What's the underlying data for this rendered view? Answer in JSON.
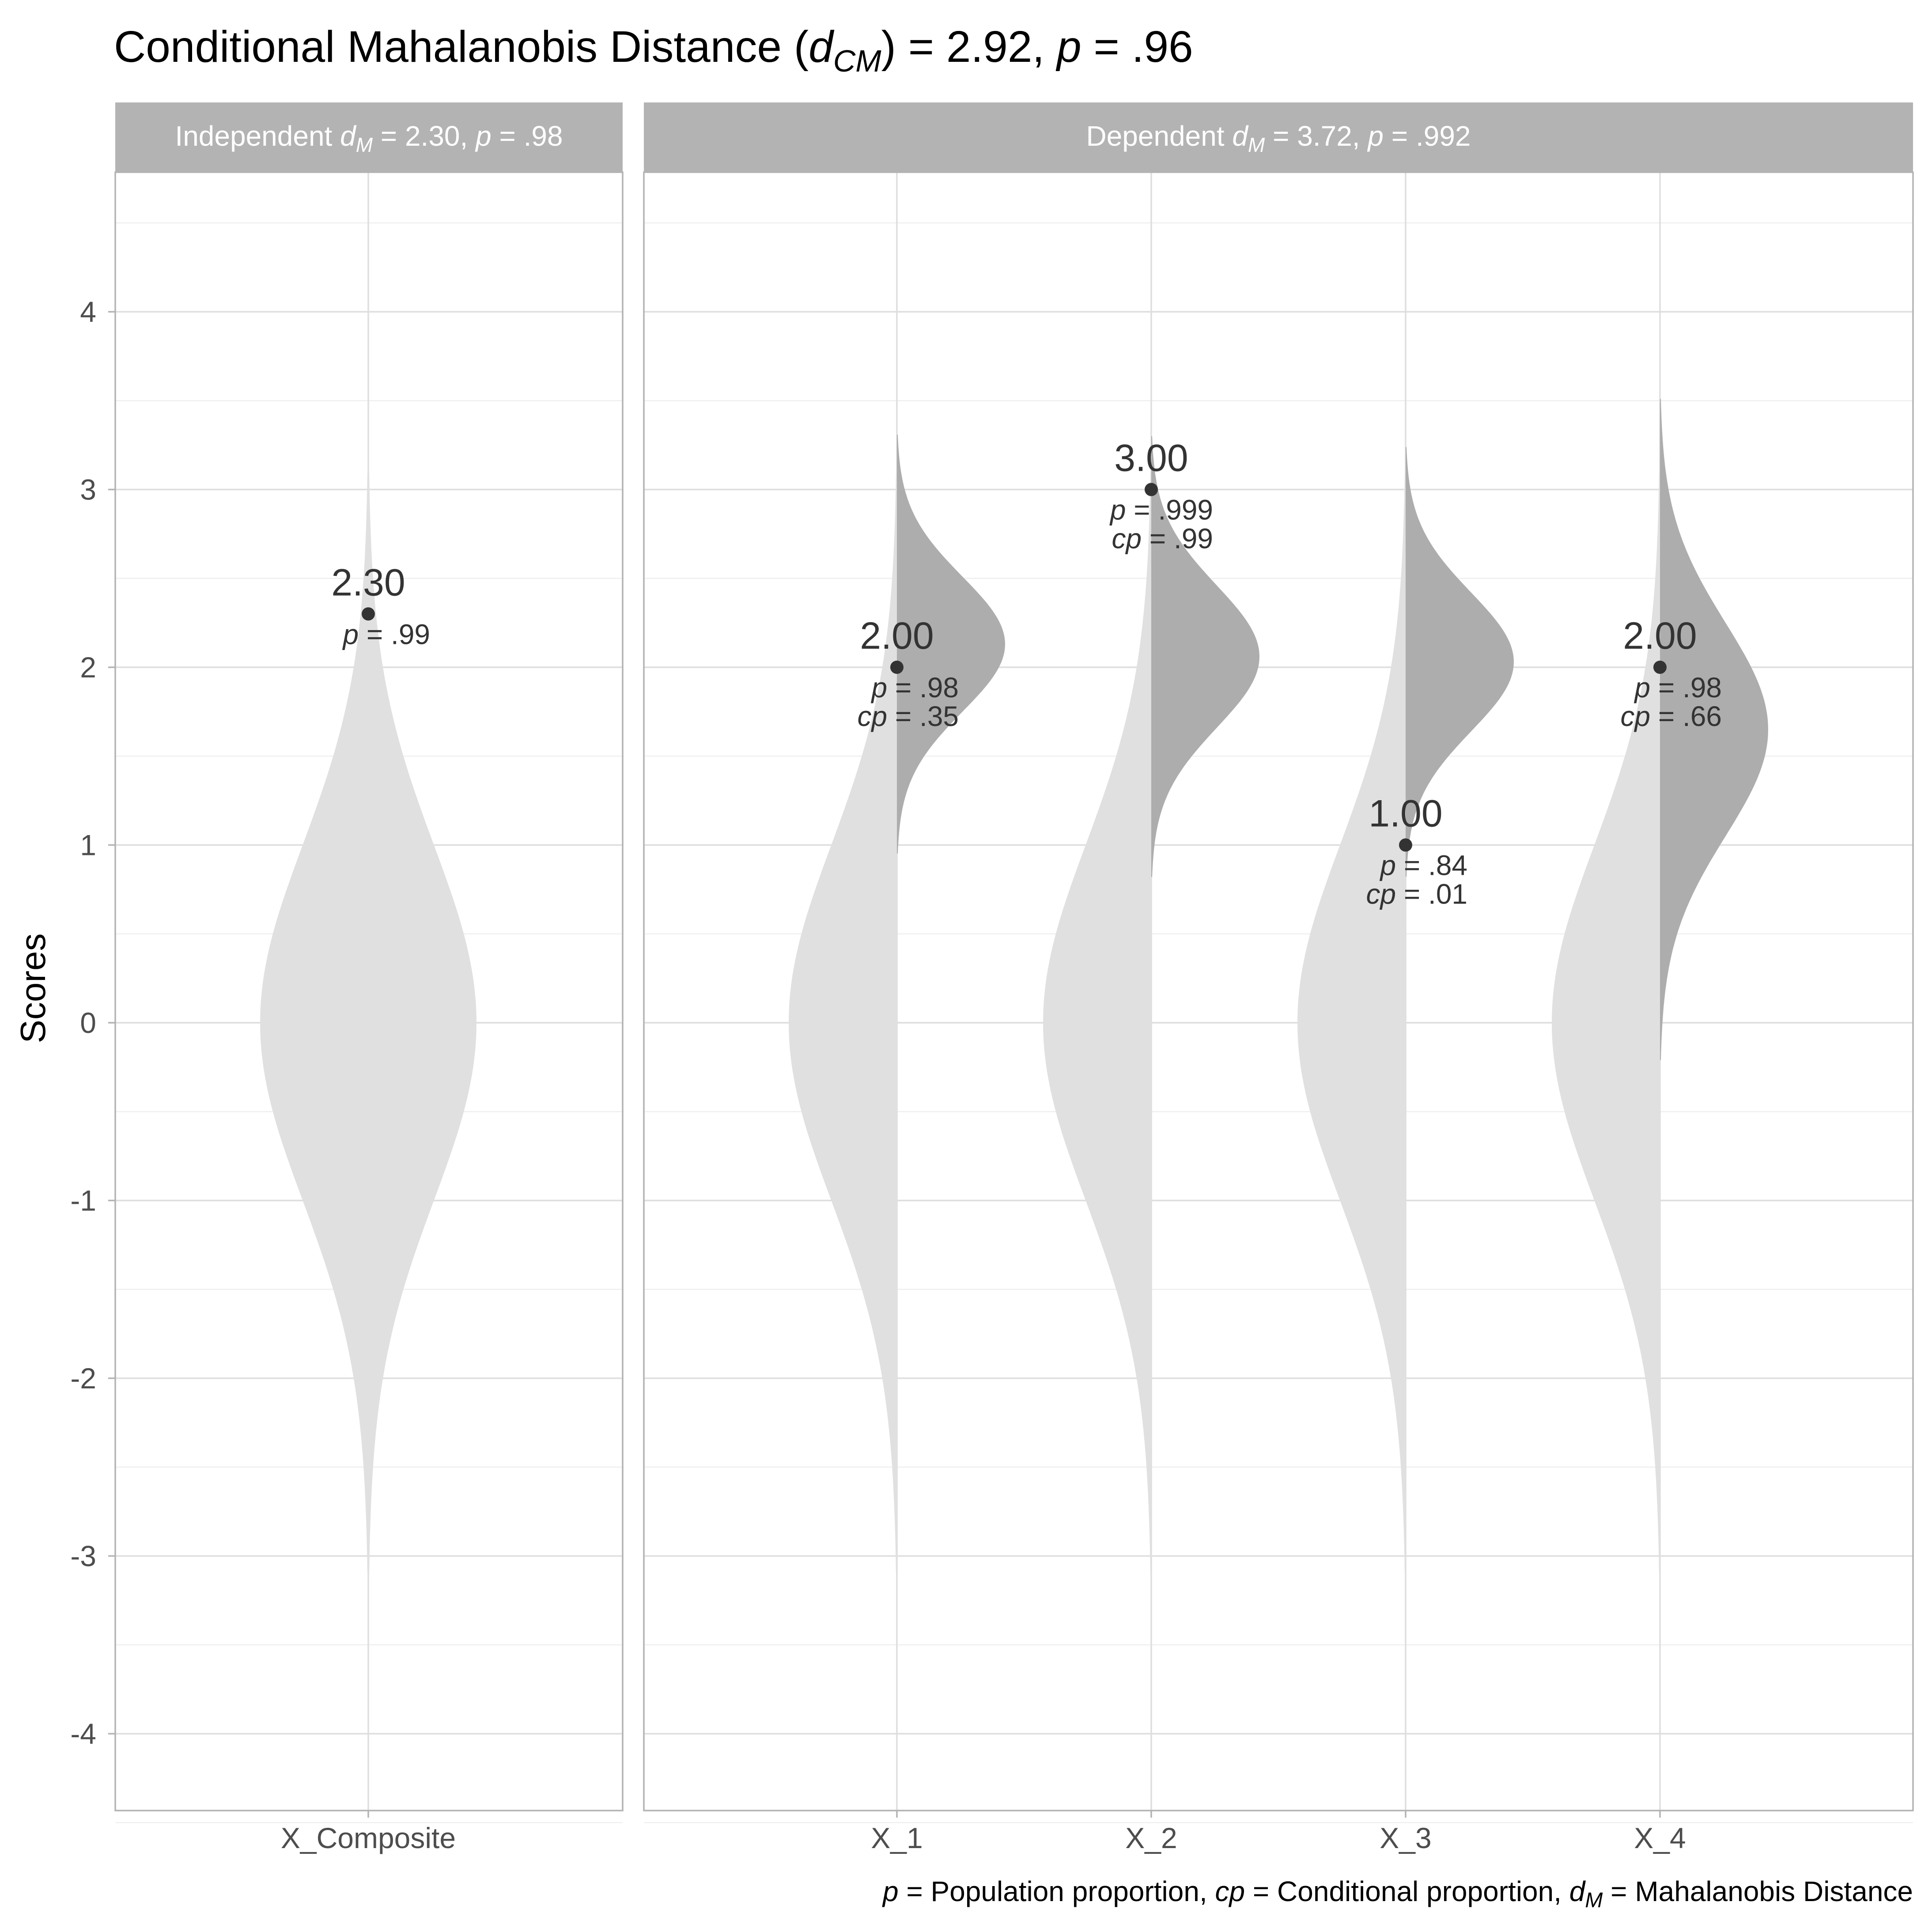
{
  "title": {
    "prefix": "Conditional Mahalanobis Distance (",
    "symbol": "d",
    "subscript": "CM",
    "suffix": ") = 2.92, ",
    "p_symbol": "p",
    "p_suffix": " = .96"
  },
  "caption": {
    "p_symbol": "p",
    "p_text": " = Population proportion, ",
    "cp_symbol": "cp",
    "cp_text": " = Conditional proportion, ",
    "d_symbol": "d",
    "d_sub": "M",
    "d_text": " = Mahalanobis Distance"
  },
  "colors": {
    "density_light": "#e0e0e0",
    "density_dark": "#adadad",
    "strip": "#b3b3b3",
    "grid_major": "#dedede",
    "grid_minor": "#efefef",
    "point": "#333333",
    "panel_border": "#b3b3b3"
  },
  "chart_data": {
    "type": "violin",
    "ylabel": "Scores",
    "ylim": [
      -4.5,
      4.8
    ],
    "y_ticks": [
      -4,
      -3,
      -2,
      -1,
      0,
      1,
      2,
      3,
      4
    ],
    "grid": true,
    "panels": [
      {
        "name": "Independent",
        "d_symbol": "d",
        "d_sub": "M",
        "d_value": " = 2.30, ",
        "p_symbol": "p",
        "p_value": " = .98",
        "variables": [
          {
            "label": "X_Composite",
            "score": 2.3,
            "score_label": "2.30",
            "p_label": " = .99",
            "cp_label": null,
            "population": {
              "mean": 0.0,
              "sd": 1.0
            },
            "conditional": null
          }
        ]
      },
      {
        "name": "Dependent",
        "d_symbol": "d",
        "d_sub": "M",
        "d_value": " = 3.72, ",
        "p_symbol": "p",
        "p_value": " = .992",
        "variables": [
          {
            "label": "X_1",
            "score": 2.0,
            "score_label": "2.00",
            "p_label": " = .98",
            "cp_label": " = .35",
            "population": {
              "mean": 0.0,
              "sd": 1.0
            },
            "conditional": {
              "mean": 2.13,
              "sd": 0.38
            }
          },
          {
            "label": "X_2",
            "score": 3.0,
            "score_label": "3.00",
            "p_label": " = .999",
            "cp_label": " = .99",
            "population": {
              "mean": 0.0,
              "sd": 1.0
            },
            "conditional": {
              "mean": 2.06,
              "sd": 0.4
            }
          },
          {
            "label": "X_3",
            "score": 1.0,
            "score_label": "1.00",
            "p_label": " = .84",
            "cp_label": " = .01",
            "population": {
              "mean": 0.0,
              "sd": 1.0
            },
            "conditional": {
              "mean": 2.03,
              "sd": 0.39
            }
          },
          {
            "label": "X_4",
            "score": 2.0,
            "score_label": "2.00",
            "p_label": " = .98",
            "cp_label": " = .66",
            "population": {
              "mean": 0.0,
              "sd": 1.0
            },
            "conditional": {
              "mean": 1.65,
              "sd": 0.6
            }
          }
        ]
      }
    ]
  }
}
